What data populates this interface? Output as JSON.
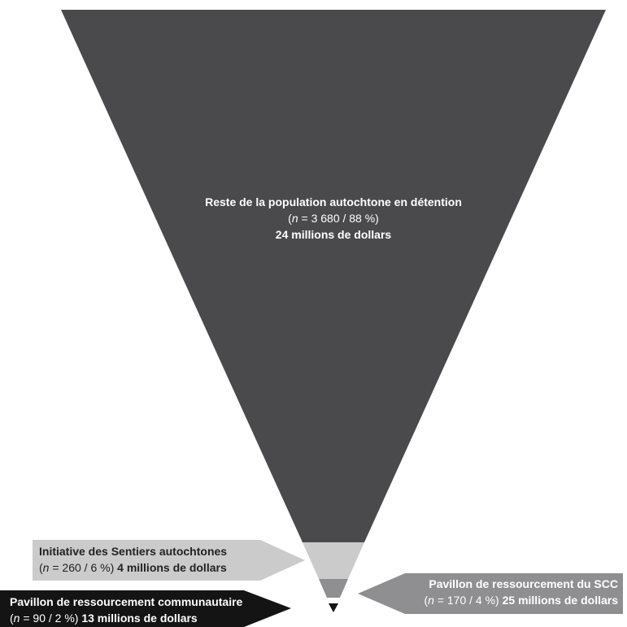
{
  "colors": {
    "main_segment": "#4a4a4d",
    "initiative_segment": "#cbcbcc",
    "scc_segment": "#8f8f91",
    "community_segment": "#141414",
    "initiative_callout": "#cbcbcc",
    "scc_callout": "#8f8f91",
    "community_callout": "#141414"
  },
  "segments": [
    {
      "id": "main",
      "name": "Reste de la population autochtone en détention",
      "n_prefix": "(",
      "n_var": "n",
      "n_value": " = 3 680 / 88 %)",
      "amount": "24 millions de dollars",
      "n": 3680,
      "percent": 88,
      "millions": 24
    },
    {
      "id": "initiative",
      "name": "Initiative des Sentiers autochtones",
      "n_prefix": "(",
      "n_var": "n",
      "n_value": " = 260 / 6 %) ",
      "amount": "4 millions de dollars",
      "n": 260,
      "percent": 6,
      "millions": 4
    },
    {
      "id": "scc",
      "name": "Pavillon de ressourcement du SCC",
      "n_prefix": "(",
      "n_var": "n",
      "n_value": " = 170 / 4 %) ",
      "amount": "25 millions de dollars",
      "n": 170,
      "percent": 4,
      "millions": 25
    },
    {
      "id": "community",
      "name": "Pavillon de ressourcement communautaire",
      "n_prefix": "(",
      "n_var": "n",
      "n_value": " = 90 / 2 %) ",
      "amount": "13 millions de dollars",
      "n": 90,
      "percent": 2,
      "millions": 13
    }
  ]
}
